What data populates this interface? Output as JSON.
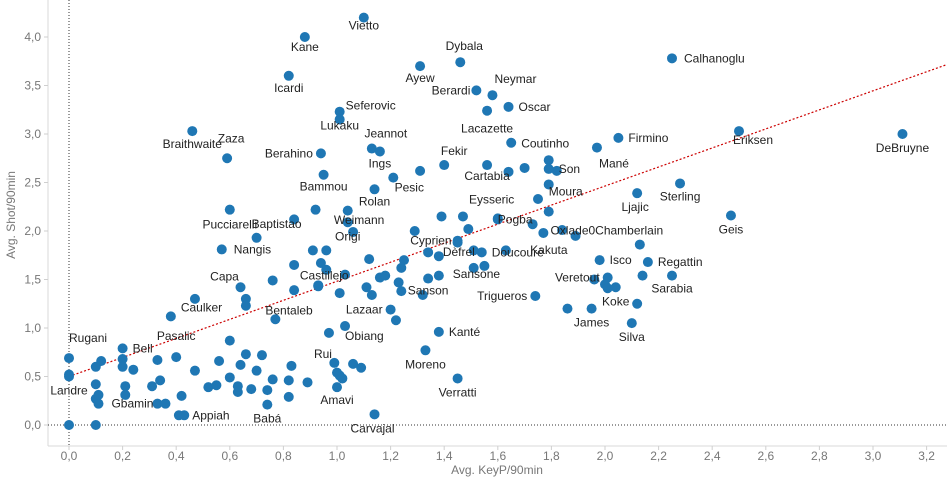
{
  "chart_data": {
    "type": "scatter",
    "title": "",
    "xlabel": "Avg. KeyP/90min",
    "ylabel": "Avg. Shot/90min",
    "xlim": [
      -0.08,
      3.28
    ],
    "ylim": [
      -0.1,
      4.25
    ],
    "xticks": [
      "0,0",
      "0,2",
      "0,4",
      "0,6",
      "0,8",
      "1,0",
      "1,2",
      "1,4",
      "1,6",
      "1,8",
      "2,0",
      "2,2",
      "2,4",
      "2,6",
      "2,8",
      "3,0",
      "3,2"
    ],
    "yticks": [
      "0,0",
      "0,5",
      "1,0",
      "1,5",
      "2,0",
      "2,5",
      "3,0",
      "3,5",
      "4,0"
    ],
    "grid": false,
    "colors": {
      "point": "#1f77b4",
      "trend": "#cc0000",
      "zero_line": "#333333",
      "text": "#222222",
      "axis_text": "#777777"
    },
    "trendline": {
      "x": [
        0,
        3.28
      ],
      "y": [
        0.5,
        3.72
      ]
    },
    "labeled_points": [
      {
        "name": "Vietto",
        "x": 1.1,
        "y": 4.2
      },
      {
        "name": "Kane",
        "x": 0.88,
        "y": 4.0
      },
      {
        "name": "Dybala",
        "x": 1.46,
        "y": 3.74
      },
      {
        "name": "Calhanoglu",
        "x": 2.25,
        "y": 3.78
      },
      {
        "name": "Ayew",
        "x": 1.31,
        "y": 3.7
      },
      {
        "name": "Icardi",
        "x": 0.82,
        "y": 3.6
      },
      {
        "name": "Neymar",
        "x": 1.58,
        "y": 3.4
      },
      {
        "name": "Berardi",
        "x": 1.52,
        "y": 3.45
      },
      {
        "name": "Oscar",
        "x": 1.64,
        "y": 3.28
      },
      {
        "name": "Seferovic",
        "x": 1.01,
        "y": 3.23
      },
      {
        "name": "Lacazette",
        "x": 1.56,
        "y": 3.24
      },
      {
        "name": "Braithwaite",
        "x": 0.46,
        "y": 3.03
      },
      {
        "name": "Eriksen",
        "x": 2.5,
        "y": 3.03
      },
      {
        "name": "DeBruyne",
        "x": 3.11,
        "y": 3.0
      },
      {
        "name": "Firmino",
        "x": 2.05,
        "y": 2.96
      },
      {
        "name": "Lukaku",
        "x": 1.01,
        "y": 3.15
      },
      {
        "name": "Jeannot",
        "x": 1.13,
        "y": 2.85
      },
      {
        "name": "Coutinho",
        "x": 1.65,
        "y": 2.91
      },
      {
        "name": "Berahino",
        "x": 0.94,
        "y": 2.8
      },
      {
        "name": "Mané",
        "x": 1.97,
        "y": 2.86
      },
      {
        "name": "Fekir",
        "x": 1.4,
        "y": 2.68
      },
      {
        "name": "Ings",
        "x": 1.16,
        "y": 2.82
      },
      {
        "name": "Son",
        "x": 1.79,
        "y": 2.64
      },
      {
        "name": "Cartabia",
        "x": 1.56,
        "y": 2.68
      },
      {
        "name": "Zaza",
        "x": 0.59,
        "y": 2.75
      },
      {
        "name": "Bammou",
        "x": 0.95,
        "y": 2.58
      },
      {
        "name": "Pesic",
        "x": 1.21,
        "y": 2.55
      },
      {
        "name": "Sterling",
        "x": 2.28,
        "y": 2.49
      },
      {
        "name": "Rolan",
        "x": 1.14,
        "y": 2.43
      },
      {
        "name": "Ljajic",
        "x": 2.12,
        "y": 2.39
      },
      {
        "name": "Eysseric",
        "x": 1.47,
        "y": 2.15
      },
      {
        "name": "Moura",
        "x": 1.79,
        "y": 2.2
      },
      {
        "name": "Pucciarelli",
        "x": 0.6,
        "y": 2.22
      },
      {
        "name": "Geis",
        "x": 2.47,
        "y": 2.16
      },
      {
        "name": "Origi",
        "x": 1.04,
        "y": 2.09
      },
      {
        "name": "Oxlade0Chamberlain",
        "x": 2.13,
        "y": 1.86
      },
      {
        "name": "Pogba",
        "x": 1.6,
        "y": 2.12
      },
      {
        "name": "Baptistao",
        "x": 0.7,
        "y": 1.93
      },
      {
        "name": "Cyprien",
        "x": 1.45,
        "y": 1.9
      },
      {
        "name": "Weimann",
        "x": 1.06,
        "y": 1.99
      },
      {
        "name": "Kakuta",
        "x": 1.89,
        "y": 1.95
      },
      {
        "name": "Nangis",
        "x": 0.57,
        "y": 1.81
      },
      {
        "name": "Doucouré",
        "x": 1.54,
        "y": 1.78
      },
      {
        "name": "Dèfrel",
        "x": 1.38,
        "y": 1.74
      },
      {
        "name": "Regattin",
        "x": 2.16,
        "y": 1.68
      },
      {
        "name": "Isco",
        "x": 1.98,
        "y": 1.7
      },
      {
        "name": "Capa",
        "x": 0.64,
        "y": 1.42
      },
      {
        "name": "Sarabia",
        "x": 2.25,
        "y": 1.54
      },
      {
        "name": "Sansone",
        "x": 1.55,
        "y": 1.64
      },
      {
        "name": "Veretout",
        "x": 2.01,
        "y": 1.52
      },
      {
        "name": "Trigueros",
        "x": 1.74,
        "y": 1.33
      },
      {
        "name": "Sanson",
        "x": 1.34,
        "y": 1.51
      },
      {
        "name": "Castillejo",
        "x": 0.93,
        "y": 1.44
      },
      {
        "name": "Koke",
        "x": 2.04,
        "y": 1.42
      },
      {
        "name": "Lazaar",
        "x": 1.2,
        "y": 1.19
      },
      {
        "name": "James",
        "x": 1.95,
        "y": 1.2
      },
      {
        "name": "Caulker",
        "x": 0.38,
        "y": 1.12
      },
      {
        "name": "Bentaleb",
        "x": 0.77,
        "y": 1.09
      },
      {
        "name": "Kanté",
        "x": 1.38,
        "y": 0.96
      },
      {
        "name": "Silva",
        "x": 2.1,
        "y": 1.05
      },
      {
        "name": "Obiang",
        "x": 1.03,
        "y": 1.02
      },
      {
        "name": "Rugani",
        "x": 0.0,
        "y": 0.69
      },
      {
        "name": "Bell",
        "x": 0.2,
        "y": 0.79
      },
      {
        "name": "Pasalic",
        "x": 0.4,
        "y": 0.7
      },
      {
        "name": "Rui",
        "x": 0.97,
        "y": 0.95
      },
      {
        "name": "Moreno",
        "x": 1.33,
        "y": 0.77
      },
      {
        "name": "Landre",
        "x": 0.0,
        "y": 0.5
      },
      {
        "name": "Verratti",
        "x": 1.45,
        "y": 0.48
      },
      {
        "name": "Amavi",
        "x": 1.0,
        "y": 0.39
      },
      {
        "name": "Babá",
        "x": 0.74,
        "y": 0.21
      },
      {
        "name": "Appiah",
        "x": 0.43,
        "y": 0.1
      },
      {
        "name": "Gbamin",
        "x": 0.36,
        "y": 0.22
      },
      {
        "name": "Carvajal",
        "x": 1.14,
        "y": 0.11
      }
    ],
    "other_points": [
      [
        0.0,
        0.0
      ],
      [
        0.1,
        0.0
      ],
      [
        0.0,
        0.52
      ],
      [
        0.1,
        0.27
      ],
      [
        0.1,
        0.42
      ],
      [
        0.1,
        0.6
      ],
      [
        0.11,
        0.22
      ],
      [
        0.11,
        0.31
      ],
      [
        0.12,
        0.66
      ],
      [
        0.2,
        0.68
      ],
      [
        0.2,
        0.6
      ],
      [
        0.21,
        0.4
      ],
      [
        0.21,
        0.31
      ],
      [
        0.24,
        0.57
      ],
      [
        0.31,
        0.4
      ],
      [
        0.33,
        0.22
      ],
      [
        0.34,
        0.46
      ],
      [
        0.33,
        0.67
      ],
      [
        0.42,
        0.3
      ],
      [
        0.41,
        0.1
      ],
      [
        0.47,
        0.56
      ],
      [
        0.47,
        1.3
      ],
      [
        0.52,
        0.39
      ],
      [
        0.55,
        0.41
      ],
      [
        0.56,
        0.66
      ],
      [
        0.6,
        0.49
      ],
      [
        0.6,
        0.87
      ],
      [
        0.63,
        0.34
      ],
      [
        0.63,
        0.4
      ],
      [
        0.64,
        0.62
      ],
      [
        0.66,
        0.73
      ],
      [
        0.66,
        1.3
      ],
      [
        0.66,
        1.23
      ],
      [
        0.68,
        0.37
      ],
      [
        0.7,
        0.56
      ],
      [
        0.72,
        0.72
      ],
      [
        0.74,
        0.36
      ],
      [
        0.76,
        0.47
      ],
      [
        0.76,
        1.49
      ],
      [
        0.82,
        0.46
      ],
      [
        0.82,
        0.29
      ],
      [
        0.83,
        0.61
      ],
      [
        0.84,
        1.39
      ],
      [
        0.84,
        1.65
      ],
      [
        0.84,
        2.12
      ],
      [
        0.89,
        0.44
      ],
      [
        0.91,
        1.8
      ],
      [
        0.92,
        2.22
      ],
      [
        0.93,
        1.43
      ],
      [
        0.94,
        1.67
      ],
      [
        0.96,
        1.6
      ],
      [
        0.96,
        1.8
      ],
      [
        0.99,
        0.64
      ],
      [
        1.0,
        0.54
      ],
      [
        1.01,
        0.51
      ],
      [
        1.01,
        1.36
      ],
      [
        1.02,
        0.48
      ],
      [
        1.03,
        1.55
      ],
      [
        1.04,
        2.21
      ],
      [
        1.06,
        0.63
      ],
      [
        1.09,
        0.59
      ],
      [
        1.11,
        1.42
      ],
      [
        1.12,
        1.71
      ],
      [
        1.13,
        1.34
      ],
      [
        1.16,
        1.52
      ],
      [
        1.18,
        1.54
      ],
      [
        1.22,
        1.08
      ],
      [
        1.23,
        1.47
      ],
      [
        1.24,
        1.38
      ],
      [
        1.24,
        1.62
      ],
      [
        1.25,
        1.7
      ],
      [
        1.29,
        2.0
      ],
      [
        1.31,
        2.62
      ],
      [
        1.32,
        1.34
      ],
      [
        1.34,
        1.78
      ],
      [
        1.38,
        1.54
      ],
      [
        1.39,
        2.15
      ],
      [
        1.45,
        1.88
      ],
      [
        1.49,
        2.02
      ],
      [
        1.51,
        1.8
      ],
      [
        1.51,
        1.62
      ],
      [
        1.6,
        2.13
      ],
      [
        1.63,
        1.8
      ],
      [
        1.64,
        2.61
      ],
      [
        1.73,
        2.07
      ],
      [
        1.77,
        1.98
      ],
      [
        1.79,
        2.73
      ],
      [
        1.82,
        2.62
      ],
      [
        1.84,
        2.01
      ],
      [
        1.79,
        2.48
      ],
      [
        1.7,
        2.65
      ],
      [
        1.96,
        1.5
      ],
      [
        2.0,
        1.45
      ],
      [
        2.01,
        1.41
      ],
      [
        2.12,
        1.25
      ],
      [
        2.14,
        1.54
      ],
      [
        1.86,
        1.2
      ],
      [
        1.75,
        2.33
      ]
    ]
  }
}
